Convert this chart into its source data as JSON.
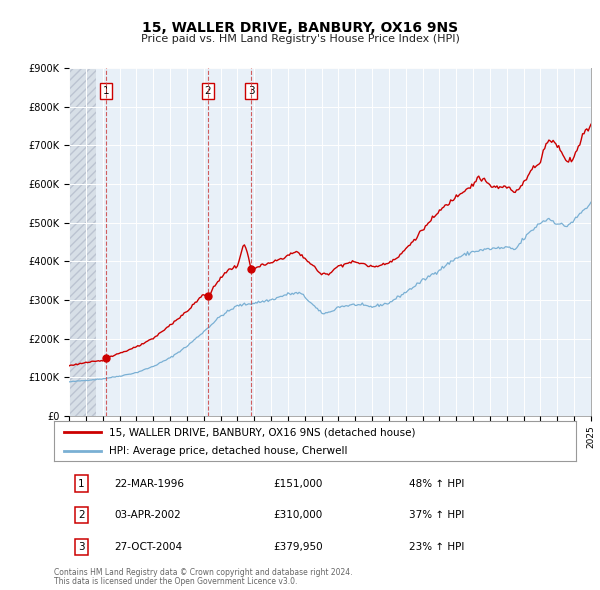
{
  "title": "15, WALLER DRIVE, BANBURY, OX16 9NS",
  "subtitle": "Price paid vs. HM Land Registry's House Price Index (HPI)",
  "legend_label_red": "15, WALLER DRIVE, BANBURY, OX16 9NS (detached house)",
  "legend_label_blue": "HPI: Average price, detached house, Cherwell",
  "footer_line1": "Contains HM Land Registry data © Crown copyright and database right 2024.",
  "footer_line2": "This data is licensed under the Open Government Licence v3.0.",
  "transactions": [
    {
      "num": 1,
      "date": "22-MAR-1996",
      "price_str": "£151,000",
      "year": 1996.22,
      "price": 151000,
      "pct": "48% ↑ HPI"
    },
    {
      "num": 2,
      "date": "03-APR-2002",
      "price_str": "£310,000",
      "year": 2002.25,
      "price": 310000,
      "pct": "37% ↑ HPI"
    },
    {
      "num": 3,
      "date": "27-OCT-2004",
      "price_str": "£379,950",
      "year": 2004.82,
      "price": 379950,
      "pct": "23% ↑ HPI"
    }
  ],
  "ylim": [
    0,
    900000
  ],
  "yticks": [
    0,
    100000,
    200000,
    300000,
    400000,
    500000,
    600000,
    700000,
    800000,
    900000
  ],
  "ytick_labels": [
    "£0",
    "£100K",
    "£200K",
    "£300K",
    "£400K",
    "£500K",
    "£600K",
    "£700K",
    "£800K",
    "£900K"
  ],
  "xlim_start": 1994,
  "xlim_end": 2025,
  "red_color": "#cc0000",
  "blue_color": "#7ab0d4",
  "vline_color": "#cc4444",
  "dot_color": "#cc0000",
  "plot_bg_color": "#e8f0f8",
  "grid_color": "#ffffff",
  "hatch_facecolor": "#d0d8e0",
  "hatch_pattern": "////",
  "title_fontsize": 10,
  "subtitle_fontsize": 8,
  "tick_fontsize": 7,
  "legend_fontsize": 7.5,
  "table_fontsize": 7.5,
  "footer_fontsize": 5.5
}
